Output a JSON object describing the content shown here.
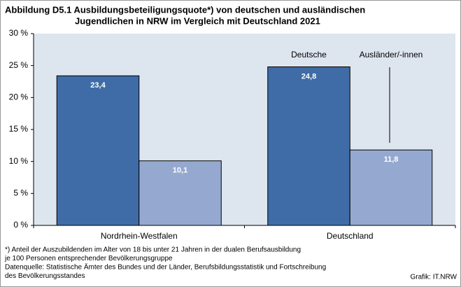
{
  "chart_data": {
    "type": "bar",
    "title": [
      "Abbildung D5.1  Ausbildungsbeteiligungsquote*) von deutschen und ausländischen",
      "Jugendlichen in NRW im Vergleich mit Deutschland 2021"
    ],
    "categories": [
      "Nordrhein-Westfalen",
      "Deutschland"
    ],
    "series": [
      {
        "name": "Deutsche",
        "color": "#3f6ca6",
        "values": [
          23.4,
          24.8
        ],
        "value_labels": [
          "23,4",
          "24,8"
        ]
      },
      {
        "name": "Ausländer/-innen",
        "color": "#95a9d0",
        "values": [
          10.1,
          11.8
        ],
        "value_labels": [
          "10,1",
          "11,8"
        ]
      }
    ],
    "ylim": [
      0,
      30
    ],
    "yticks": [
      {
        "value": 0,
        "label": "0 %"
      },
      {
        "value": 5,
        "label": "5 %"
      },
      {
        "value": 10,
        "label": "10 %"
      },
      {
        "value": 15,
        "label": "15 %"
      },
      {
        "value": 20,
        "label": "20 %"
      },
      {
        "value": 25,
        "label": "25 %"
      },
      {
        "value": 30,
        "label": "30 %"
      }
    ],
    "notes": [
      "*) Anteil der Auszubildenden im Alter von 18 bis unter 21 Jahren in der dualen Berufsausbildung",
      "je 100 Personen entsprechender Bevölkerungsgruppe",
      "Datenquelle:  Statistische Ämter des Bundes und der Länder, Berufsbildungsstatistik und Fortschreibung",
      "des Bevölkerungsstandes"
    ],
    "source": "Grafik: IT.NRW"
  }
}
